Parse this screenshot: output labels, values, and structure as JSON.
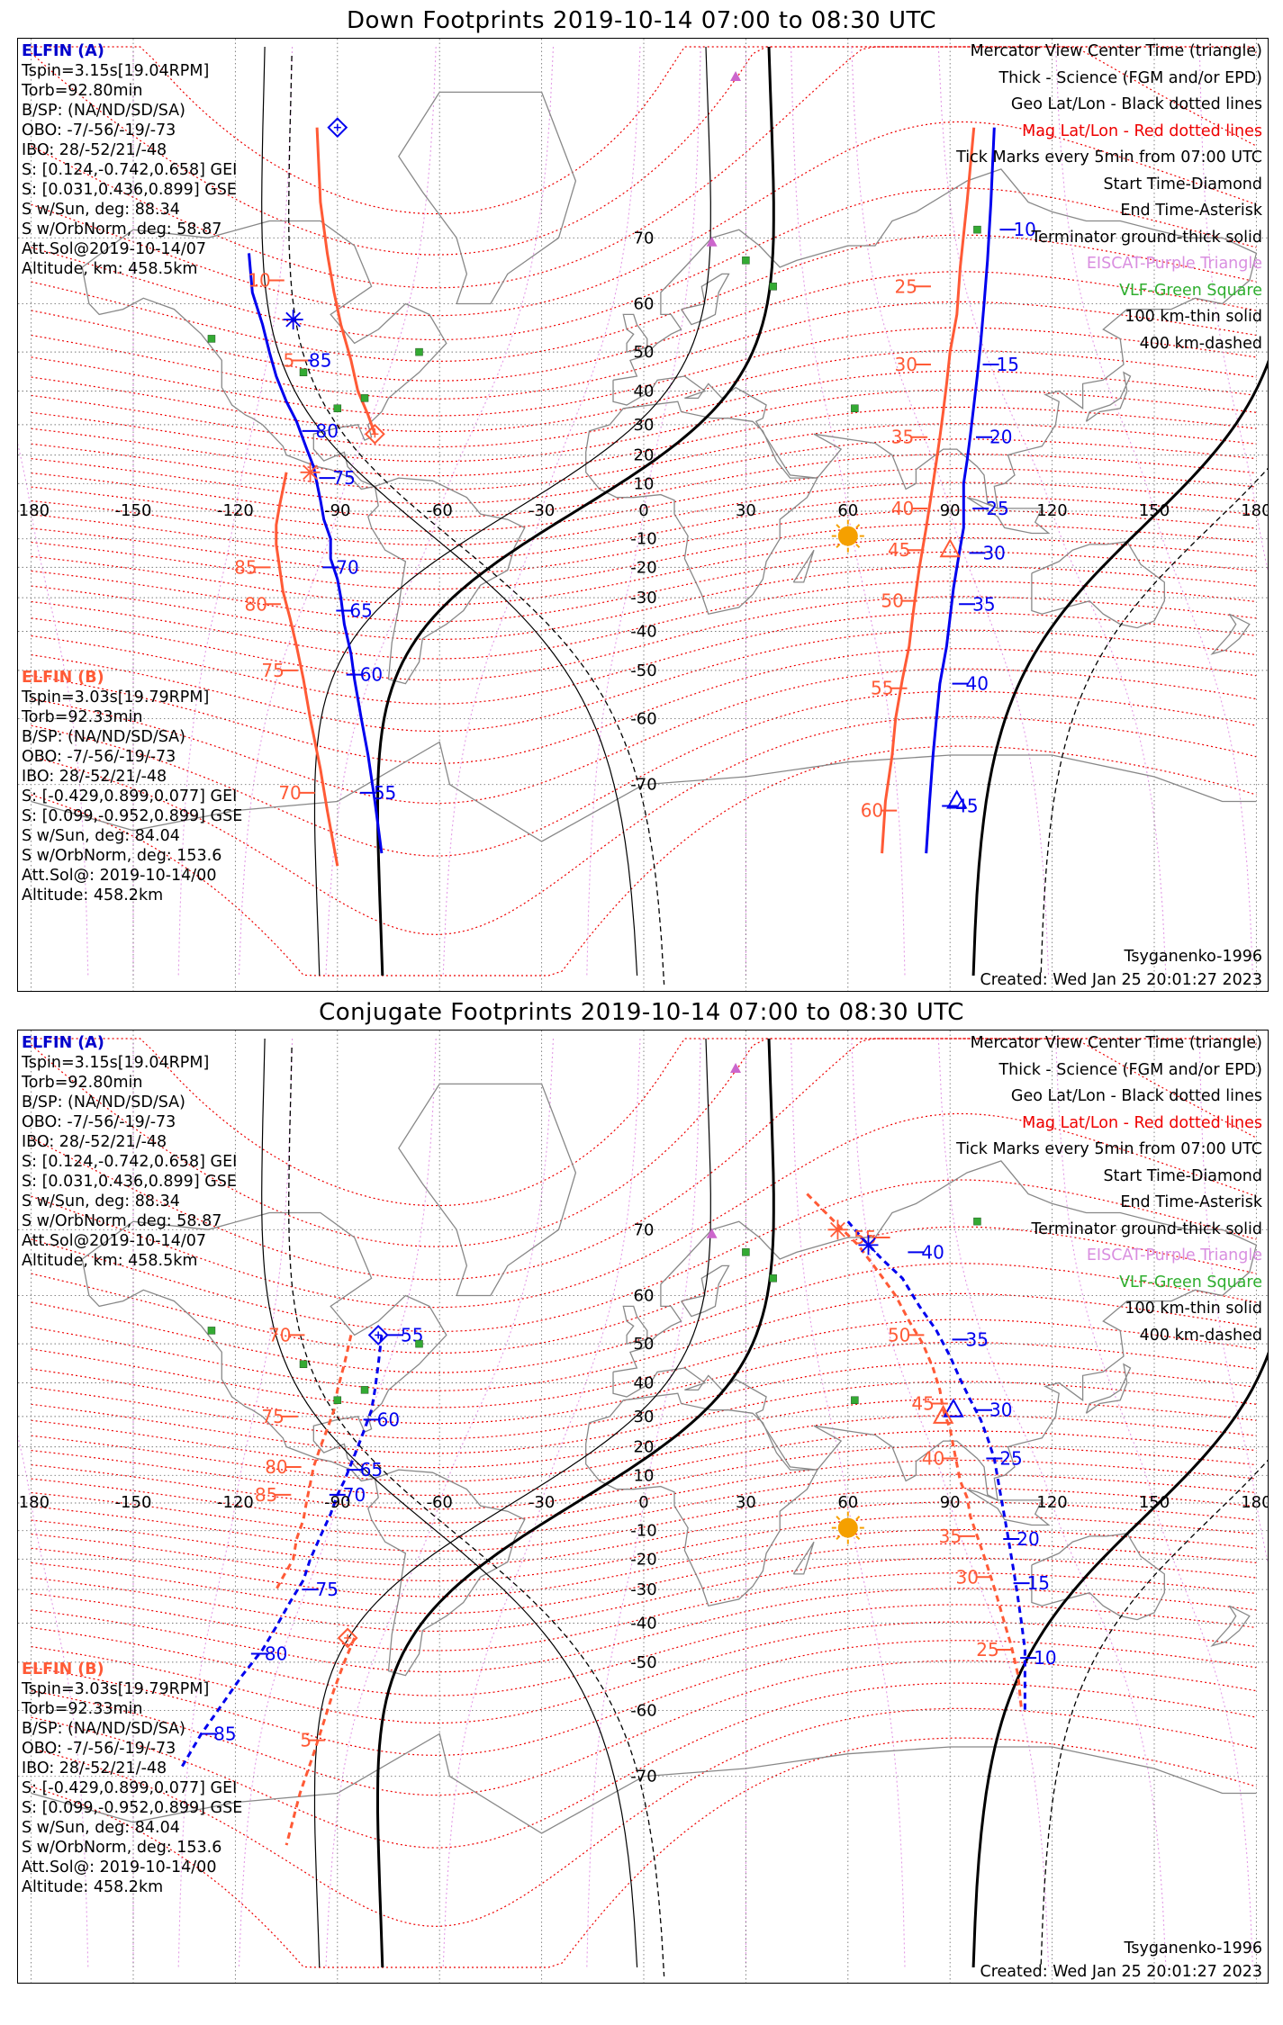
{
  "panels": [
    {
      "id": "down",
      "title": "Down Footprints 2019-10-14 07:00 to 08:30 UTC",
      "elfin_a": {
        "title": "ELFIN (A)",
        "lines": [
          "Tspin=3.15s[19.04RPM]",
          "Torb=92.80min",
          "B/SP: (NA/ND/SD/SA)",
          "OBO: -7/-56/-19/-73",
          "IBO: 28/-52/21/-48",
          "S: [0.124,-0.742,0.658] GEI",
          "S: [0.031,0.436,0.899] GSE",
          "S w/Sun, deg: 88.34",
          "S w/OrbNorm, deg: 58.87",
          "Att.Sol@2019-10-14/07",
          "Altitude, km: 458.5km"
        ]
      },
      "elfin_b": {
        "title": "ELFIN (B)",
        "lines": [
          "Tspin=3.03s[19.79RPM]",
          "Torb=92.33min",
          "B/SP: (NA/ND/SD/SA)",
          "OBO: -7/-56/-19/-73",
          "IBO: 28/-52/21/-48",
          "S: [-0.429,0.899,0.077] GEI",
          "S: [0.099,-0.952,0.899] GSE",
          "S w/Sun, deg: 84.04",
          "S w/OrbNorm, deg: 153.6",
          "Att.Sol@: 2019-10-14/00",
          "Altitude: 458.2km"
        ]
      },
      "legend": [
        {
          "text": "Mercator View Center Time (triangle)",
          "color": "#000000"
        },
        {
          "text": "Thick - Science (FGM and/or EPD)",
          "color": "#000000"
        },
        {
          "text": "Geo Lat/Lon - Black dotted lines",
          "color": "#000000"
        },
        {
          "text": "Mag Lat/Lon - Red dotted lines",
          "color": "#ee0000"
        },
        {
          "text": "Tick Marks every 5min from 07:00 UTC",
          "color": "#000000"
        },
        {
          "text": "Start Time-Diamond",
          "color": "#000000"
        },
        {
          "text": "End Time-Asterisk",
          "color": "#000000"
        },
        {
          "text": "Terminator ground-thick solid",
          "color": "#000000"
        },
        {
          "text": "EISCAT-Purple Triangle",
          "color": "#d98ee0"
        },
        {
          "text": "VLF-Green Square",
          "color": "#2fae2f"
        },
        {
          "text": "100 km-thin solid",
          "color": "#000000"
        },
        {
          "text": "400 km-dashed",
          "color": "#000000"
        }
      ],
      "model": "Tsyganenko-1996",
      "created": "Created: Wed Jan 25 20:01:27 2023",
      "track_a_labels": [
        {
          "t": "10",
          "lon": 107,
          "lat": 71
        },
        {
          "t": "15",
          "lon": 102,
          "lat": 47
        },
        {
          "t": "20",
          "lon": 100,
          "lat": 26
        },
        {
          "t": "25",
          "lon": 99,
          "lat": 1
        },
        {
          "t": "30",
          "lon": 98,
          "lat": -15
        },
        {
          "t": "35",
          "lon": 95,
          "lat": -32
        },
        {
          "t": "40",
          "lon": 93,
          "lat": -53
        },
        {
          "t": "45",
          "lon": 90,
          "lat": -72.5
        },
        {
          "t": "85",
          "lon": -100,
          "lat": 48
        },
        {
          "t": "80",
          "lon": -98,
          "lat": 28
        },
        {
          "t": "75",
          "lon": -93,
          "lat": 12
        },
        {
          "t": "70",
          "lon": -92,
          "lat": -20
        },
        {
          "t": "65",
          "lon": -88,
          "lat": -34
        },
        {
          "t": "60",
          "lon": -85,
          "lat": -51
        },
        {
          "t": "55",
          "lon": -81,
          "lat": -71
        }
      ],
      "track_b_labels": [
        {
          "t": "10",
          "lon": -108,
          "lat": 64
        },
        {
          "t": "5",
          "lon": -101,
          "lat": 48
        },
        {
          "t": "25",
          "lon": 82,
          "lat": 63
        },
        {
          "t": "30",
          "lon": 82,
          "lat": 47
        },
        {
          "t": "35",
          "lon": 81,
          "lat": 26
        },
        {
          "t": "40",
          "lon": 81,
          "lat": 1
        },
        {
          "t": "45",
          "lon": 80,
          "lat": -14
        },
        {
          "t": "50",
          "lon": 78,
          "lat": -31
        },
        {
          "t": "55",
          "lon": 75,
          "lat": -54
        },
        {
          "t": "60",
          "lon": 72,
          "lat": -73
        },
        {
          "t": "85",
          "lon": -112,
          "lat": -20
        },
        {
          "t": "80",
          "lon": -109,
          "lat": -32
        },
        {
          "t": "75",
          "lon": -104,
          "lat": -50
        },
        {
          "t": "70",
          "lon": -99,
          "lat": -71
        }
      ]
    },
    {
      "id": "conjugate",
      "title": "Conjugate Footprints 2019-10-14 07:00 to 08:30 UTC",
      "elfin_a": {
        "title": "ELFIN (A)",
        "lines": [
          "Tspin=3.15s[19.04RPM]",
          "Torb=92.80min",
          "B/SP: (NA/ND/SD/SA)",
          "OBO: -7/-56/-19/-73",
          "IBO: 28/-52/21/-48",
          "S: [0.124,-0.742,0.658] GEI",
          "S: [0.031,0.436,0.899] GSE",
          "S w/Sun, deg: 88.34",
          "S w/OrbNorm, deg: 58.87",
          "Att.Sol@2019-10-14/07",
          "Altitude, km: 458.5km"
        ]
      },
      "elfin_b": {
        "title": "ELFIN (B)",
        "lines": [
          "Tspin=3.03s[19.79RPM]",
          "Torb=92.33min",
          "B/SP: (NA/ND/SD/SA)",
          "OBO: -7/-56/-19/-73",
          "IBO: 28/-52/21/-48",
          "S: [-0.429,0.899,0.077] GEI",
          "S: [0.099,-0.952,0.899] GSE",
          "S w/Sun, deg: 84.04",
          "S w/OrbNorm, deg: 153.6",
          "Att.Sol@: 2019-10-14/00",
          "Altitude: 458.2km"
        ]
      },
      "legend": [
        {
          "text": "Mercator View Center Time (triangle)",
          "color": "#000000"
        },
        {
          "text": "Thick - Science (FGM and/or EPD)",
          "color": "#000000"
        },
        {
          "text": "Geo Lat/Lon - Black dotted lines",
          "color": "#000000"
        },
        {
          "text": "Mag Lat/Lon - Red dotted lines",
          "color": "#ee0000"
        },
        {
          "text": "Tick Marks every 5min from 07:00 UTC",
          "color": "#000000"
        },
        {
          "text": "Start Time-Diamond",
          "color": "#000000"
        },
        {
          "text": "End Time-Asterisk",
          "color": "#000000"
        },
        {
          "text": "Terminator ground-thick solid",
          "color": "#000000"
        },
        {
          "text": "EISCAT-Purple Triangle",
          "color": "#d98ee0"
        },
        {
          "text": "VLF-Green Square",
          "color": "#2fae2f"
        },
        {
          "text": "100 km-thin solid",
          "color": "#000000"
        },
        {
          "text": "400 km-dashed",
          "color": "#000000"
        }
      ],
      "model": "Tsyganenko-1996",
      "created": "Created: Wed Jan 25 20:01:27 2023",
      "track_a_labels": [
        {
          "t": "40",
          "lon": 80,
          "lat": 67
        },
        {
          "t": "35",
          "lon": 93,
          "lat": 51
        },
        {
          "t": "30",
          "lon": 100,
          "lat": 32
        },
        {
          "t": "25",
          "lon": 103,
          "lat": 16
        },
        {
          "t": "20",
          "lon": 108,
          "lat": -13
        },
        {
          "t": "15",
          "lon": 111,
          "lat": -28
        },
        {
          "t": "10",
          "lon": 113,
          "lat": -49
        },
        {
          "t": "55",
          "lon": -73,
          "lat": 52
        },
        {
          "t": "60",
          "lon": -80,
          "lat": 29
        },
        {
          "t": "65",
          "lon": -85,
          "lat": 12
        },
        {
          "t": "70",
          "lon": -90,
          "lat": 3
        },
        {
          "t": "75",
          "lon": -98,
          "lat": -30
        },
        {
          "t": "80",
          "lon": -113,
          "lat": -48
        },
        {
          "t": "85",
          "lon": -128,
          "lat": -64
        }
      ],
      "track_b_labels": [
        {
          "t": "55",
          "lon": 70,
          "lat": 69
        },
        {
          "t": "50",
          "lon": 80,
          "lat": 52
        },
        {
          "t": "45",
          "lon": 87,
          "lat": 34
        },
        {
          "t": "40",
          "lon": 90,
          "lat": 16
        },
        {
          "t": "35",
          "lon": 95,
          "lat": -12
        },
        {
          "t": "30",
          "lon": 100,
          "lat": -26
        },
        {
          "t": "25",
          "lon": 106,
          "lat": -47
        },
        {
          "t": "70",
          "lon": -102,
          "lat": 52
        },
        {
          "t": "75",
          "lon": -104,
          "lat": 30
        },
        {
          "t": "80",
          "lon": -103,
          "lat": 13
        },
        {
          "t": "85",
          "lon": -106,
          "lat": 3
        },
        {
          "t": "5",
          "lon": -96,
          "lat": -65
        }
      ]
    }
  ],
  "lon_ticks": [
    "-180",
    "-150",
    "-120",
    "-90",
    "-60",
    "-30",
    "0",
    "30",
    "60",
    "90",
    "120",
    "150",
    "180"
  ],
  "lat_ticks": [
    "70",
    "60",
    "50",
    "40",
    "30",
    "20",
    "10",
    "0",
    "-10",
    "-20",
    "-30",
    "-40",
    "-50",
    "-60",
    "-70"
  ],
  "colors": {
    "elfin_a": "#0000ee",
    "elfin_b": "#ff5a36",
    "mag_grid": "#ee0000",
    "geo_grid": "#555555",
    "sun": "#f5a000",
    "eiscat": "#cc66cc",
    "vlf": "#33aa33",
    "coast": "#888888"
  }
}
